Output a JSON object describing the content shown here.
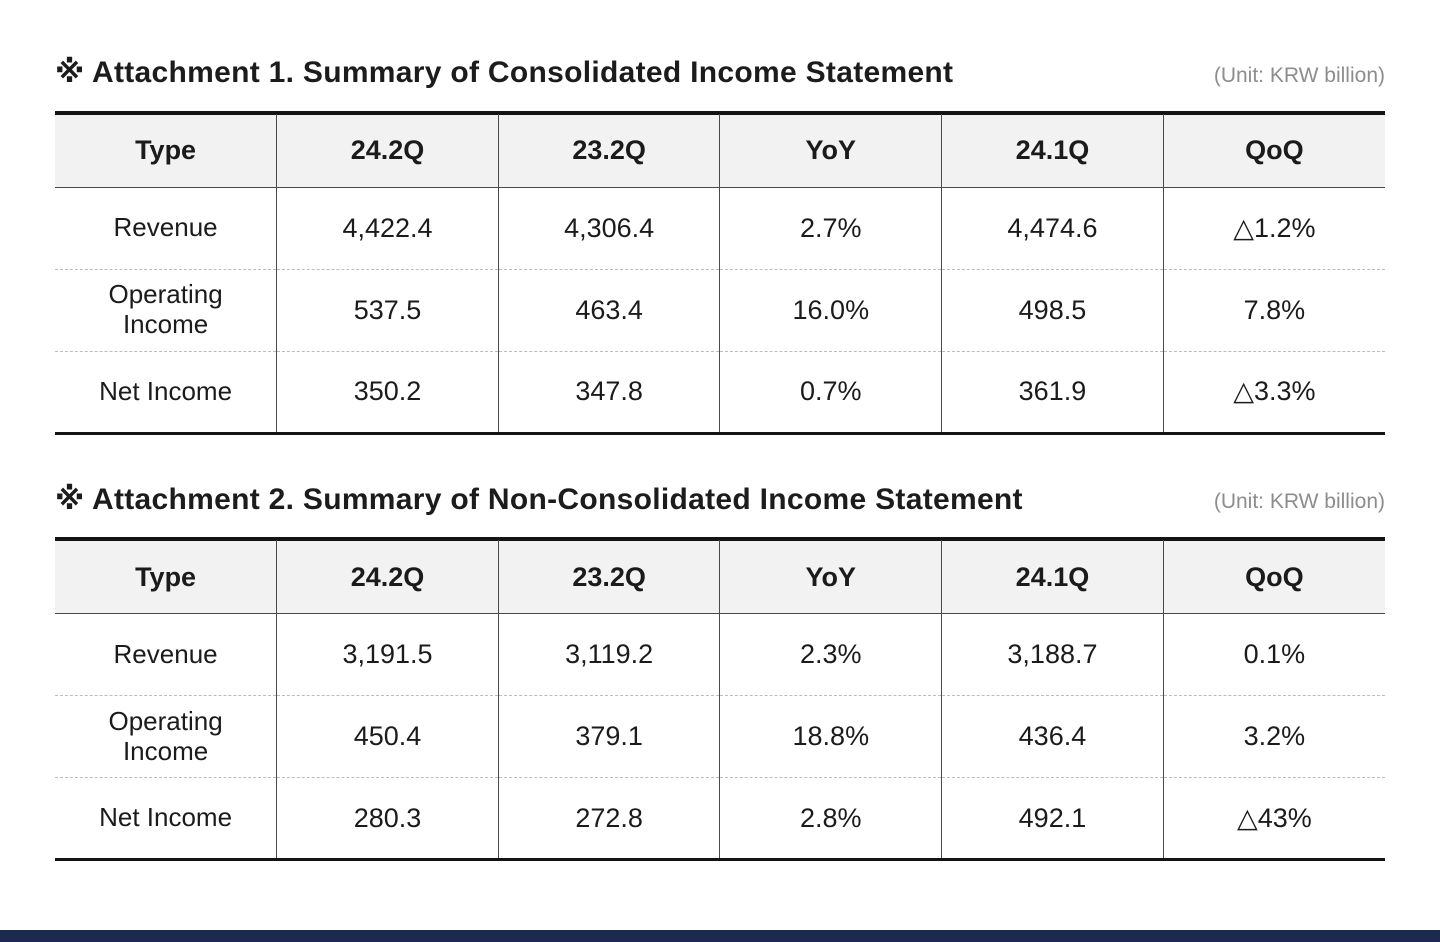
{
  "sections": [
    {
      "title": "※ Attachment 1. Summary of Consolidated Income Statement",
      "unit": "(Unit: KRW billion)",
      "table": {
        "columns": [
          "Type",
          "24.2Q",
          "23.2Q",
          "YoY",
          "24.1Q",
          "QoQ"
        ],
        "rows": [
          {
            "label": "Revenue",
            "values": [
              "4,422.4",
              "4,306.4",
              "2.7%",
              "4,474.6",
              "△1.2%"
            ]
          },
          {
            "label": "Operating Income",
            "values": [
              "537.5",
              "463.4",
              "16.0%",
              "498.5",
              "7.8%"
            ]
          },
          {
            "label": "Net Income",
            "values": [
              "350.2",
              "347.8",
              "0.7%",
              "361.9",
              "△3.3%"
            ]
          }
        ]
      }
    },
    {
      "title": "※ Attachment 2. Summary of Non-Consolidated Income Statement",
      "unit": "(Unit: KRW billion)",
      "table": {
        "columns": [
          "Type",
          "24.2Q",
          "23.2Q",
          "YoY",
          "24.1Q",
          "QoQ"
        ],
        "rows": [
          {
            "label": "Revenue",
            "values": [
              "3,191.5",
              "3,119.2",
              "2.3%",
              "3,188.7",
              "0.1%"
            ]
          },
          {
            "label": "Operating Income",
            "values": [
              "450.4",
              "379.1",
              "18.8%",
              "436.4",
              "3.2%"
            ]
          },
          {
            "label": "Net Income",
            "values": [
              "280.3",
              "272.8",
              "2.8%",
              "492.1",
              "△43%"
            ]
          }
        ]
      }
    }
  ],
  "footer": {
    "accent_color": "#1b2a4e"
  }
}
